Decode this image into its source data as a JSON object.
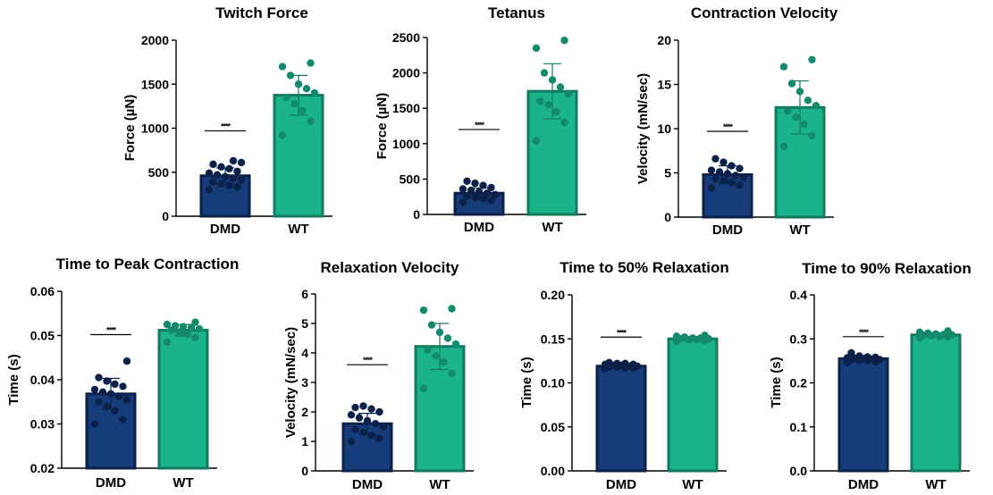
{
  "colors": {
    "dmd_fill": "#163d7a",
    "dmd_edge": "#0b2149",
    "dmd_dot": "#0b2149",
    "wt_fill": "#1bb38b",
    "wt_edge": "#117a5f",
    "wt_dot": "#138a6b"
  },
  "chart_data": [
    {
      "type": "bar",
      "title": "Twitch Force",
      "ylabel": "Force  (µN)",
      "categories": [
        "DMD",
        "WT"
      ],
      "ylim": [
        0,
        2000
      ],
      "yticks": [
        0,
        500,
        1000,
        1500,
        2000
      ],
      "ytick_labels": [
        "0",
        "500",
        "1000",
        "1500",
        "2000"
      ],
      "values": [
        460,
        1375
      ],
      "sd": [
        90,
        225
      ],
      "points": [
        [
          300,
          330,
          350,
          370,
          390,
          410,
          430,
          450,
          470,
          490,
          510,
          540,
          560,
          590,
          610,
          630
        ],
        [
          920,
          1080,
          1200,
          1280,
          1350,
          1400,
          1450,
          1500,
          1600,
          1700,
          1740
        ]
      ],
      "significance": {
        "label": "****",
        "y": 970
      }
    },
    {
      "type": "bar",
      "title": "Tetanus",
      "ylabel": "Force  (µN)",
      "categories": [
        "DMD",
        "WT"
      ],
      "ylim": [
        0,
        2500
      ],
      "yticks": [
        0,
        500,
        1000,
        1500,
        2000,
        2500
      ],
      "ytick_labels": [
        "0",
        "500",
        "1000",
        "1500",
        "2000",
        "2500"
      ],
      "values": [
        300,
        1740
      ],
      "sd": [
        75,
        390
      ],
      "points": [
        [
          170,
          200,
          220,
          240,
          260,
          280,
          300,
          320,
          340,
          360,
          380,
          410,
          440,
          470
        ],
        [
          1040,
          1300,
          1450,
          1550,
          1600,
          1700,
          1800,
          1900,
          2000,
          2350,
          2460
        ]
      ],
      "significance": {
        "label": "****",
        "y": 1200
      }
    },
    {
      "type": "bar",
      "title": "Contraction Velocity",
      "ylabel": "Velocity  (mN/sec)",
      "categories": [
        "DMD",
        "WT"
      ],
      "ylim": [
        0,
        20
      ],
      "yticks": [
        0,
        5,
        10,
        15,
        20
      ],
      "ytick_labels": [
        "0",
        "5",
        "10",
        "15",
        "20"
      ],
      "values": [
        4.8,
        12.4
      ],
      "sd": [
        1.0,
        3.0
      ],
      "points": [
        [
          3.3,
          3.6,
          3.9,
          4.1,
          4.3,
          4.5,
          4.7,
          4.9,
          5.1,
          5.3,
          5.5,
          5.8,
          6.2,
          6.6
        ],
        [
          8.0,
          9.2,
          10.5,
          11.3,
          12.0,
          12.6,
          13.2,
          14.2,
          15.1,
          17.0,
          17.8
        ]
      ],
      "significance": {
        "label": "****",
        "y": 9.7
      }
    },
    {
      "type": "bar",
      "title": "Time to Peak Contraction",
      "ylabel": "Time (s)",
      "categories": [
        "DMD",
        "WT"
      ],
      "ylim": [
        0.02,
        0.06
      ],
      "yticks": [
        0.02,
        0.03,
        0.04,
        0.05,
        0.06
      ],
      "ytick_labels": [
        "0.02",
        "0.03",
        "0.04",
        "0.05",
        "0.06"
      ],
      "values": [
        0.0368,
        0.0512
      ],
      "sd": [
        0.0035,
        0.0013
      ],
      "points": [
        [
          0.03,
          0.031,
          0.033,
          0.034,
          0.035,
          0.0355,
          0.0362,
          0.0368,
          0.0372,
          0.0378,
          0.0385,
          0.039,
          0.0397,
          0.0405,
          0.0442
        ],
        [
          0.0485,
          0.0495,
          0.0503,
          0.0508,
          0.0512,
          0.0515,
          0.0518,
          0.052,
          0.0522,
          0.0525,
          0.053
        ]
      ],
      "significance": {
        "label": "****",
        "y": 0.0502
      }
    },
    {
      "type": "bar",
      "title": "Relaxation Velocity",
      "ylabel": "Velocity  (mN/sec)",
      "categories": [
        "DMD",
        "WT"
      ],
      "ylim": [
        0,
        6
      ],
      "yticks": [
        0,
        1,
        2,
        3,
        4,
        5,
        6
      ],
      "ytick_labels": [
        "0",
        "1",
        "2",
        "3",
        "4",
        "5",
        "6"
      ],
      "values": [
        1.6,
        4.22
      ],
      "sd": [
        0.35,
        0.78
      ],
      "points": [
        [
          1.0,
          1.1,
          1.2,
          1.3,
          1.4,
          1.5,
          1.6,
          1.7,
          1.8,
          1.9,
          2.0,
          2.1,
          2.2,
          2.15
        ],
        [
          2.8,
          3.3,
          3.7,
          3.9,
          4.1,
          4.3,
          4.5,
          4.7,
          4.95,
          5.45,
          5.5
        ]
      ],
      "significance": {
        "label": "****",
        "y": 3.6
      }
    },
    {
      "type": "bar",
      "title": "Time to 50% Relaxation",
      "ylabel": "Time (s)",
      "categories": [
        "DMD",
        "WT"
      ],
      "ylim": [
        0,
        0.2
      ],
      "yticks": [
        0,
        0.05,
        0.1,
        0.15,
        0.2
      ],
      "ytick_labels": [
        "0.00",
        "0.05",
        "0.10",
        "0.15",
        "0.20"
      ],
      "values": [
        0.119,
        0.15
      ],
      "sd": [
        0.002,
        0.002
      ],
      "points": [
        [
          0.116,
          0.117,
          0.117,
          0.118,
          0.118,
          0.119,
          0.119,
          0.12,
          0.12,
          0.121,
          0.121,
          0.122,
          0.122,
          0.123
        ],
        [
          0.147,
          0.148,
          0.149,
          0.149,
          0.15,
          0.15,
          0.151,
          0.151,
          0.152,
          0.153,
          0.154
        ]
      ],
      "significance": {
        "label": "****",
        "y": 0.152
      }
    },
    {
      "type": "bar",
      "title": "Time to 90% Relaxation",
      "ylabel": "Time (s)",
      "categories": [
        "DMD",
        "WT"
      ],
      "ylim": [
        0,
        0.4
      ],
      "yticks": [
        0,
        0.1,
        0.2,
        0.3,
        0.4
      ],
      "ytick_labels": [
        "0.0",
        "0.1",
        "0.2",
        "0.3",
        "0.4"
      ],
      "values": [
        0.255,
        0.309
      ],
      "sd": [
        0.006,
        0.005
      ],
      "points": [
        [
          0.246,
          0.248,
          0.25,
          0.251,
          0.252,
          0.253,
          0.254,
          0.255,
          0.256,
          0.257,
          0.258,
          0.259,
          0.261,
          0.268
        ],
        [
          0.302,
          0.304,
          0.305,
          0.307,
          0.308,
          0.309,
          0.31,
          0.311,
          0.313,
          0.315,
          0.318
        ]
      ],
      "significance": {
        "label": "****",
        "y": 0.305
      }
    }
  ]
}
